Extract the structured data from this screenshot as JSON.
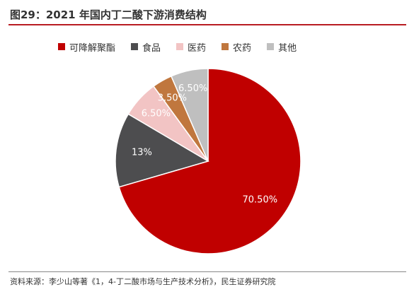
{
  "title": "图29：2021 年国内丁二酸下游消费结构",
  "source": "资料来源：李少山等著《1，4-丁二酸市场与生产技术分析》，民生证券研究院",
  "chart_data": {
    "type": "pie",
    "title": "图29：2021 年国内丁二酸下游消费结构",
    "legend_position": "top",
    "slices": [
      {
        "label": "可降解聚酯",
        "value": 70.5,
        "data_label": "70.50%",
        "color": "#c00000"
      },
      {
        "label": "食品",
        "value": 13,
        "data_label": "13%",
        "color": "#4d4d4f"
      },
      {
        "label": "医药",
        "value": 6.5,
        "data_label": "6.50%",
        "color": "#f2c4c4"
      },
      {
        "label": "农药",
        "value": 3.5,
        "data_label": "3.50%",
        "color": "#c0773e"
      },
      {
        "label": "其他",
        "value": 6.5,
        "data_label": "6.50%",
        "color": "#bfbfbf"
      }
    ]
  }
}
